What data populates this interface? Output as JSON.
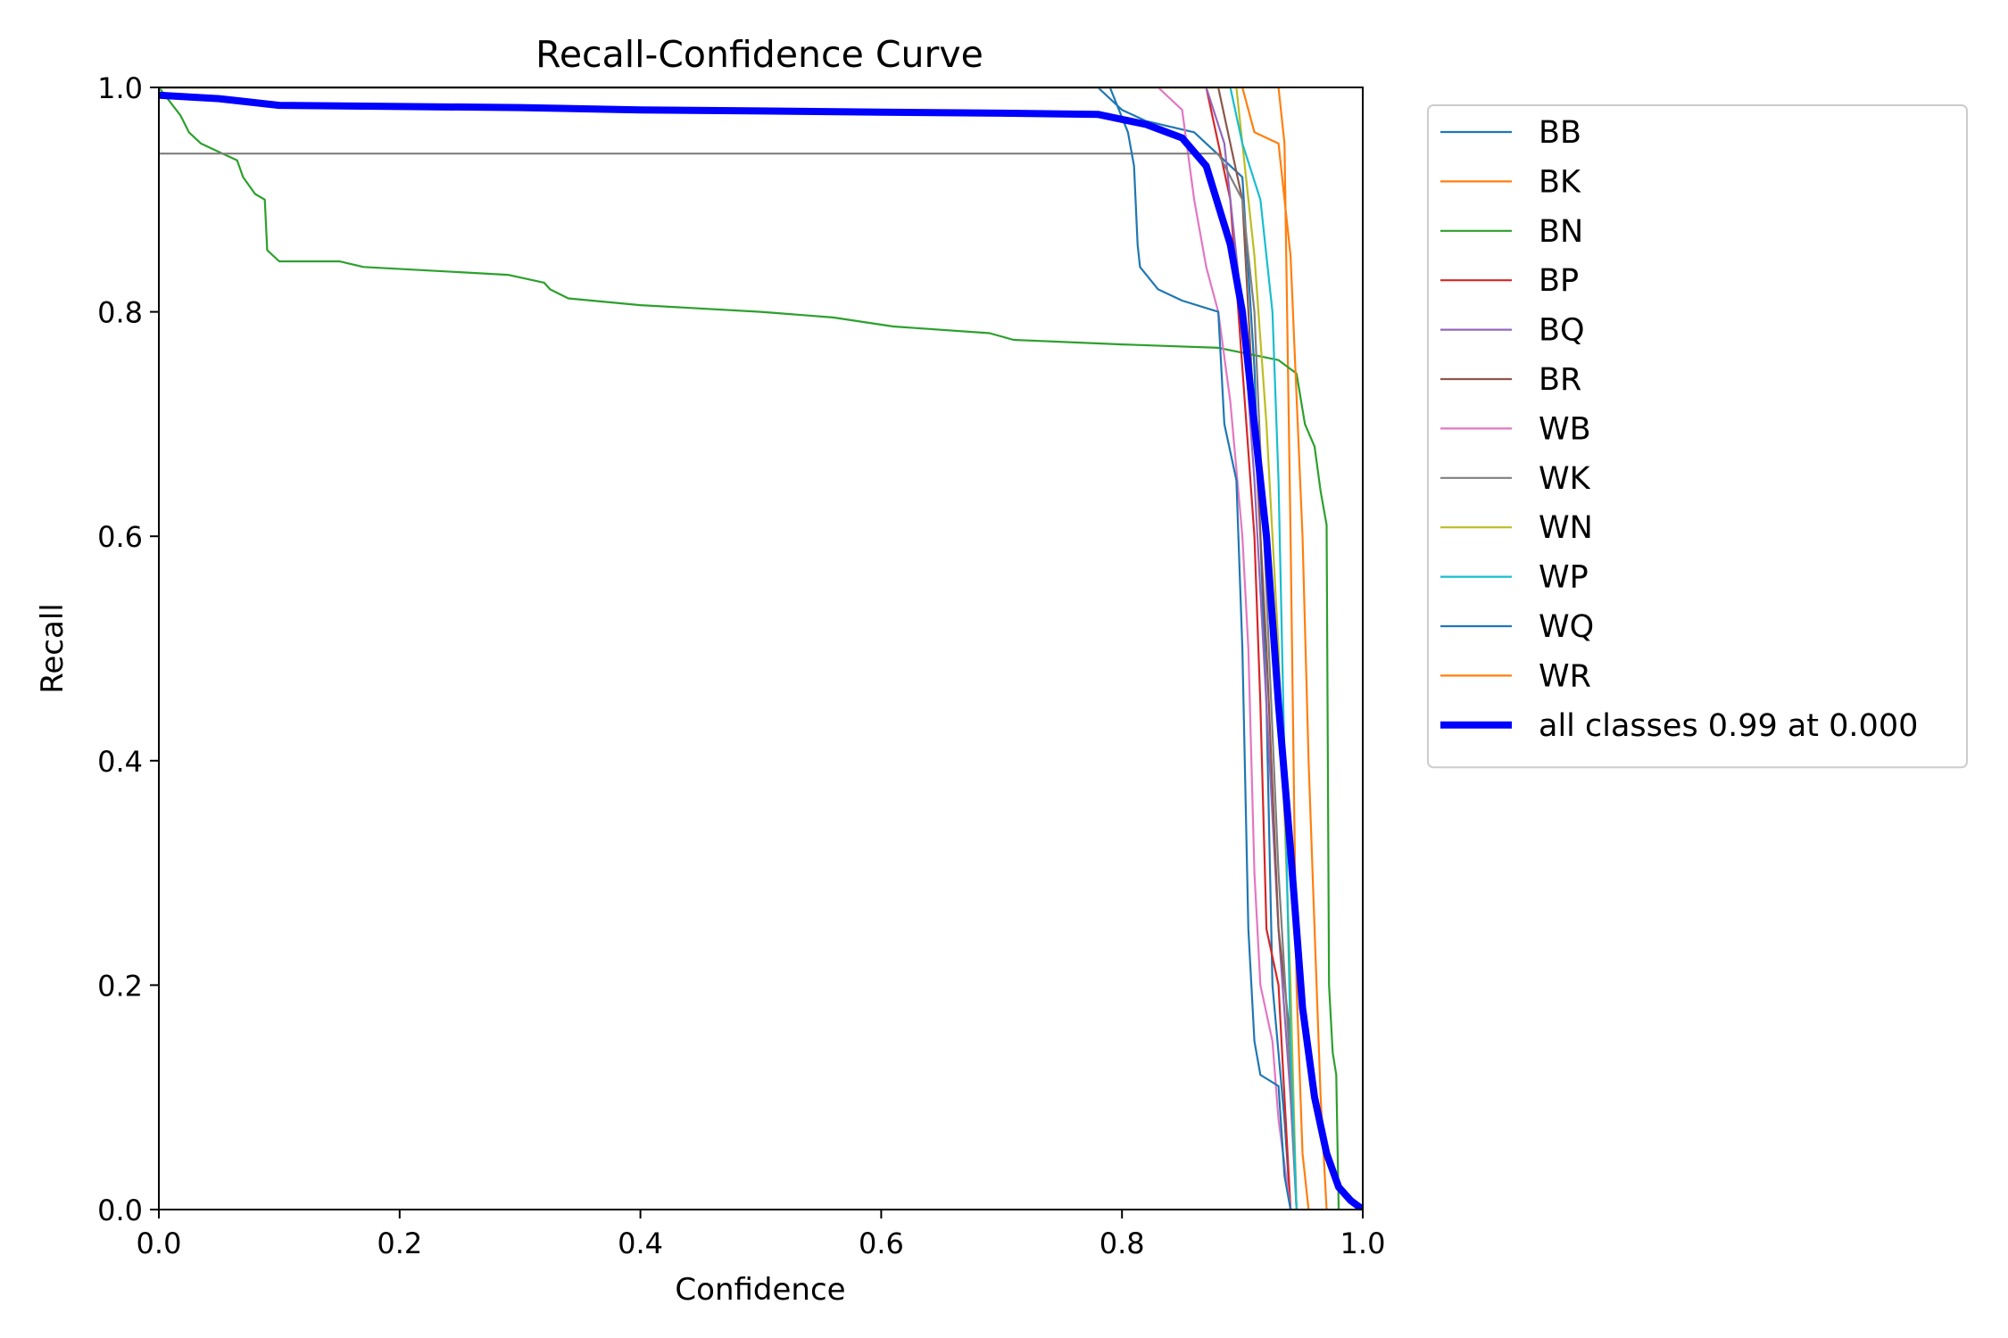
{
  "chart_data": {
    "type": "line",
    "title": "Recall-Confidence Curve",
    "xlabel": "Confidence",
    "ylabel": "Recall",
    "xlim": [
      0.0,
      1.0
    ],
    "ylim": [
      0.0,
      1.0
    ],
    "xticks": [
      "0.0",
      "0.2",
      "0.4",
      "0.6",
      "0.8",
      "1.0"
    ],
    "yticks": [
      "0.0",
      "0.2",
      "0.4",
      "0.6",
      "0.8",
      "1.0"
    ],
    "grid": false,
    "legend_position": "outside right, top",
    "series": [
      {
        "name": "BB",
        "color": "#1f77b4",
        "points": [
          [
            0,
            1.0
          ],
          [
            0.78,
            1.0
          ],
          [
            0.8,
            0.98
          ],
          [
            0.82,
            0.97
          ],
          [
            0.86,
            0.96
          ],
          [
            0.9,
            0.92
          ],
          [
            0.91,
            0.75
          ],
          [
            0.92,
            0.45
          ],
          [
            0.925,
            0.2
          ],
          [
            0.935,
            0.08
          ],
          [
            0.94,
            0.0
          ]
        ]
      },
      {
        "name": "BK",
        "color": "#ff7f0e",
        "points": [
          [
            0,
            1.0
          ],
          [
            0.93,
            1.0
          ],
          [
            0.935,
            0.95
          ],
          [
            0.94,
            0.6
          ],
          [
            0.945,
            0.2
          ],
          [
            0.95,
            0.05
          ],
          [
            0.955,
            0.0
          ]
        ]
      },
      {
        "name": "BN",
        "color": "#2ca02c",
        "points": [
          [
            0,
            1.0
          ],
          [
            0.018,
            0.975
          ],
          [
            0.025,
            0.96
          ],
          [
            0.035,
            0.95
          ],
          [
            0.045,
            0.945
          ],
          [
            0.065,
            0.935
          ],
          [
            0.07,
            0.92
          ],
          [
            0.08,
            0.905
          ],
          [
            0.088,
            0.9
          ],
          [
            0.09,
            0.855
          ],
          [
            0.1,
            0.845
          ],
          [
            0.15,
            0.845
          ],
          [
            0.17,
            0.84
          ],
          [
            0.29,
            0.833
          ],
          [
            0.32,
            0.826
          ],
          [
            0.325,
            0.82
          ],
          [
            0.34,
            0.812
          ],
          [
            0.4,
            0.806
          ],
          [
            0.5,
            0.8
          ],
          [
            0.56,
            0.795
          ],
          [
            0.61,
            0.787
          ],
          [
            0.69,
            0.781
          ],
          [
            0.71,
            0.775
          ],
          [
            0.8,
            0.771
          ],
          [
            0.88,
            0.768
          ],
          [
            0.93,
            0.757
          ],
          [
            0.945,
            0.745
          ],
          [
            0.952,
            0.7
          ],
          [
            0.96,
            0.68
          ],
          [
            0.965,
            0.64
          ],
          [
            0.97,
            0.61
          ],
          [
            0.972,
            0.2
          ],
          [
            0.975,
            0.14
          ],
          [
            0.978,
            0.12
          ],
          [
            0.98,
            0.0
          ]
        ]
      },
      {
        "name": "BP",
        "color": "#d62728",
        "points": [
          [
            0,
            1.0
          ],
          [
            0.87,
            1.0
          ],
          [
            0.89,
            0.9
          ],
          [
            0.9,
            0.75
          ],
          [
            0.91,
            0.6
          ],
          [
            0.915,
            0.45
          ],
          [
            0.92,
            0.25
          ],
          [
            0.93,
            0.2
          ],
          [
            0.935,
            0.1
          ],
          [
            0.94,
            0.0
          ]
        ]
      },
      {
        "name": "BQ",
        "color": "#9467bd",
        "points": [
          [
            0,
            1.0
          ],
          [
            0.87,
            1.0
          ],
          [
            0.885,
            0.95
          ],
          [
            0.9,
            0.8
          ],
          [
            0.91,
            0.65
          ],
          [
            0.92,
            0.45
          ],
          [
            0.93,
            0.25
          ],
          [
            0.94,
            0.1
          ],
          [
            0.945,
            0.0
          ]
        ]
      },
      {
        "name": "BR",
        "color": "#8c564b",
        "points": [
          [
            0,
            1.0
          ],
          [
            0.88,
            1.0
          ],
          [
            0.9,
            0.9
          ],
          [
            0.91,
            0.7
          ],
          [
            0.92,
            0.5
          ],
          [
            0.93,
            0.25
          ],
          [
            0.94,
            0.15
          ],
          [
            0.945,
            0.0
          ]
        ]
      },
      {
        "name": "WB",
        "color": "#e377c2",
        "points": [
          [
            0,
            1.0
          ],
          [
            0.83,
            1.0
          ],
          [
            0.85,
            0.98
          ],
          [
            0.86,
            0.9
          ],
          [
            0.87,
            0.84
          ],
          [
            0.88,
            0.8
          ],
          [
            0.89,
            0.72
          ],
          [
            0.9,
            0.6
          ],
          [
            0.905,
            0.5
          ],
          [
            0.91,
            0.3
          ],
          [
            0.915,
            0.2
          ],
          [
            0.925,
            0.15
          ],
          [
            0.93,
            0.08
          ],
          [
            0.94,
            0.0
          ]
        ]
      },
      {
        "name": "WK",
        "color": "#7f7f7f",
        "points": [
          [
            0,
            0.941
          ],
          [
            0.88,
            0.941
          ],
          [
            0.9,
            0.9
          ],
          [
            0.91,
            0.8
          ],
          [
            0.92,
            0.55
          ],
          [
            0.93,
            0.3
          ],
          [
            0.94,
            0.12
          ],
          [
            0.945,
            0.0
          ]
        ]
      },
      {
        "name": "WN",
        "color": "#bcbd22",
        "points": [
          [
            0,
            1.0
          ],
          [
            0.895,
            1.0
          ],
          [
            0.9,
            0.95
          ],
          [
            0.91,
            0.85
          ],
          [
            0.92,
            0.7
          ],
          [
            0.93,
            0.5
          ],
          [
            0.94,
            0.2
          ],
          [
            0.945,
            0.0
          ]
        ]
      },
      {
        "name": "WP",
        "color": "#17becf",
        "points": [
          [
            0,
            1.0
          ],
          [
            0.89,
            1.0
          ],
          [
            0.9,
            0.95
          ],
          [
            0.915,
            0.9
          ],
          [
            0.925,
            0.8
          ],
          [
            0.93,
            0.65
          ],
          [
            0.935,
            0.4
          ],
          [
            0.94,
            0.15
          ],
          [
            0.945,
            0.0
          ]
        ]
      },
      {
        "name": "WQ",
        "color": "#1f77b4",
        "points": [
          [
            0,
            1.0
          ],
          [
            0.79,
            1.0
          ],
          [
            0.805,
            0.96
          ],
          [
            0.81,
            0.93
          ],
          [
            0.813,
            0.86
          ],
          [
            0.815,
            0.84
          ],
          [
            0.83,
            0.82
          ],
          [
            0.85,
            0.81
          ],
          [
            0.88,
            0.8
          ],
          [
            0.885,
            0.7
          ],
          [
            0.895,
            0.65
          ],
          [
            0.9,
            0.5
          ],
          [
            0.905,
            0.25
          ],
          [
            0.91,
            0.15
          ],
          [
            0.915,
            0.12
          ],
          [
            0.93,
            0.11
          ],
          [
            0.935,
            0.03
          ],
          [
            0.94,
            0.0
          ]
        ]
      },
      {
        "name": "WR",
        "color": "#ff7f0e",
        "points": [
          [
            0,
            1.0
          ],
          [
            0.9,
            1.0
          ],
          [
            0.91,
            0.96
          ],
          [
            0.93,
            0.95
          ],
          [
            0.94,
            0.85
          ],
          [
            0.95,
            0.6
          ],
          [
            0.955,
            0.4
          ],
          [
            0.96,
            0.25
          ],
          [
            0.965,
            0.1
          ],
          [
            0.97,
            0.0
          ]
        ]
      },
      {
        "name": "all classes 0.99 at 0.000",
        "color": "#0000ff",
        "points": [
          [
            0,
            0.993
          ],
          [
            0.05,
            0.99
          ],
          [
            0.1,
            0.984
          ],
          [
            0.2,
            0.983
          ],
          [
            0.3,
            0.982
          ],
          [
            0.4,
            0.98
          ],
          [
            0.5,
            0.979
          ],
          [
            0.6,
            0.978
          ],
          [
            0.7,
            0.977
          ],
          [
            0.78,
            0.976
          ],
          [
            0.82,
            0.967
          ],
          [
            0.85,
            0.955
          ],
          [
            0.87,
            0.93
          ],
          [
            0.89,
            0.86
          ],
          [
            0.9,
            0.8
          ],
          [
            0.91,
            0.7
          ],
          [
            0.92,
            0.6
          ],
          [
            0.93,
            0.45
          ],
          [
            0.94,
            0.32
          ],
          [
            0.95,
            0.18
          ],
          [
            0.96,
            0.1
          ],
          [
            0.97,
            0.05
          ],
          [
            0.98,
            0.02
          ],
          [
            0.99,
            0.008
          ],
          [
            1.0,
            0.0
          ]
        ]
      }
    ]
  }
}
